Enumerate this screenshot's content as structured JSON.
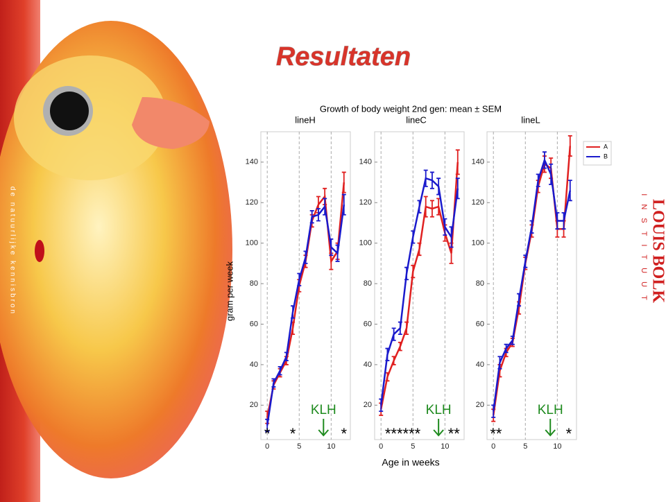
{
  "slide": {
    "title": "Resultaten",
    "tagline": "de natuurlijke kennisbron",
    "logo": "LOUIS BOLK",
    "logo_sub": "INSTITUUT"
  },
  "figure": {
    "title": "Growth of body weight 2nd gen: mean ± SEM",
    "ylabel": "gram per week",
    "xlabel": "Age in weeks"
  },
  "chart_data": [
    {
      "type": "line",
      "title": "lineH",
      "x": [
        0,
        1,
        2,
        3,
        4,
        5,
        6,
        7,
        8,
        9,
        10,
        11,
        12
      ],
      "series": [
        {
          "color": "#e02020",
          "values": [
            14,
            30,
            36,
            42,
            58,
            79,
            91,
            111,
            119,
            123,
            91,
            96,
            130
          ],
          "errors": [
            3,
            2,
            2,
            2,
            3,
            3,
            3,
            3,
            4,
            4,
            4,
            4,
            5
          ]
        },
        {
          "color": "#1a1acc",
          "values": [
            10,
            31,
            37,
            44,
            66,
            82,
            93,
            113,
            114,
            118,
            98,
            95,
            119
          ],
          "errors": [
            3,
            2,
            2,
            2,
            3,
            3,
            3,
            3,
            3,
            4,
            4,
            4,
            5
          ]
        }
      ],
      "xlim": [
        -1,
        13
      ],
      "xticks": [
        0,
        5,
        10
      ],
      "ylim": [
        3,
        155
      ],
      "yticks": [
        20,
        40,
        60,
        80,
        100,
        120,
        140
      ],
      "grid": "x",
      "annotations": [
        {
          "text": "*",
          "x": 0
        },
        {
          "text": "*",
          "x": 4
        },
        {
          "text": "*",
          "x": 12
        },
        {
          "text": "KLH",
          "x": 8.8
        }
      ]
    },
    {
      "type": "line",
      "title": "lineC",
      "x": [
        0,
        1,
        2,
        3,
        4,
        5,
        6,
        7,
        8,
        9,
        10,
        11,
        12
      ],
      "series": [
        {
          "color": "#e02020",
          "values": [
            18,
            34,
            42,
            49,
            58,
            86,
            97,
            118,
            117,
            118,
            105,
            95,
            140
          ],
          "errors": [
            3,
            2,
            2,
            2,
            3,
            3,
            3,
            5,
            4,
            4,
            4,
            5,
            6
          ]
        },
        {
          "color": "#1a1acc",
          "values": [
            20,
            45,
            55,
            58,
            85,
            103,
            118,
            132,
            131,
            128,
            108,
            103,
            127
          ],
          "errors": [
            3,
            3,
            3,
            3,
            3,
            3,
            3,
            4,
            4,
            4,
            4,
            5,
            5
          ]
        }
      ],
      "xlim": [
        -1,
        13
      ],
      "xticks": [
        0,
        5,
        10
      ],
      "ylim": [
        3,
        155
      ],
      "yticks": [
        20,
        40,
        60,
        80,
        100,
        120,
        140
      ],
      "grid": "x",
      "annotations": [
        {
          "text": "******",
          "x": 3.4
        },
        {
          "text": "**",
          "x": 11.4
        },
        {
          "text": "KLH",
          "x": 9
        }
      ]
    },
    {
      "type": "line",
      "title": "lineL",
      "x": [
        0,
        1,
        2,
        3,
        4,
        5,
        6,
        7,
        8,
        9,
        10,
        11,
        12
      ],
      "series": [
        {
          "name": "A",
          "color": "#e02020",
          "values": [
            15,
            37,
            46,
            51,
            68,
            90,
            106,
            128,
            139,
            137,
            107,
            107,
            148
          ],
          "errors": [
            3,
            3,
            2,
            2,
            3,
            3,
            3,
            3,
            4,
            5,
            4,
            4,
            5
          ]
        },
        {
          "name": "B",
          "color": "#1a1acc",
          "values": [
            17,
            41,
            48,
            52,
            72,
            91,
            108,
            131,
            141,
            134,
            111,
            111,
            126
          ],
          "errors": [
            3,
            3,
            2,
            2,
            3,
            3,
            3,
            3,
            4,
            5,
            4,
            4,
            5
          ]
        }
      ],
      "xlim": [
        -1,
        13
      ],
      "xticks": [
        0,
        5,
        10
      ],
      "ylim": [
        3,
        155
      ],
      "yticks": [
        20,
        40,
        60,
        80,
        100,
        120,
        140
      ],
      "grid": "x",
      "legend": "upper right",
      "annotations": [
        {
          "text": "**",
          "x": 0.4
        },
        {
          "text": "*",
          "x": 11.8
        },
        {
          "text": "KLH",
          "x": 8.9
        }
      ]
    }
  ]
}
